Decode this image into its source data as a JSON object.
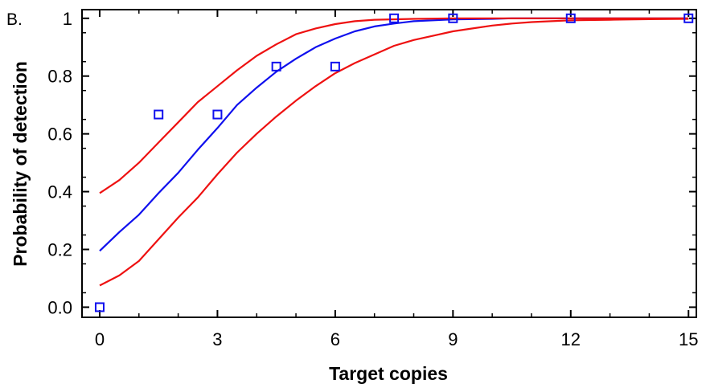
{
  "chart_data": {
    "type": "line",
    "panel_label": "B.",
    "xlabel": "Target copies",
    "ylabel": "Probability of detection",
    "xlim": [
      -0.45,
      15.2
    ],
    "ylim": [
      -0.035,
      1.03
    ],
    "x_ticks": [
      0,
      3,
      6,
      9,
      12,
      15
    ],
    "x_tick_labels": [
      "0",
      "3",
      "6",
      "9",
      "12",
      "15"
    ],
    "y_ticks": [
      0,
      0.2,
      0.4,
      0.6,
      0.8,
      1
    ],
    "y_tick_labels": [
      "0.0",
      "0.2",
      "0.4",
      "0.6",
      "0.8",
      "1"
    ],
    "grid": false,
    "colors": {
      "fit": "#1010ee",
      "bounds": "#ee1111",
      "points": "#1010ee",
      "axis": "#000000"
    },
    "series": [
      {
        "role": "observed-points",
        "marker": "open-square",
        "x": [
          0,
          1.5,
          3,
          4.5,
          6,
          7.5,
          9,
          12,
          15
        ],
        "y": [
          0.0,
          0.667,
          0.667,
          0.833,
          0.833,
          1.0,
          1.0,
          1.0,
          1.0
        ]
      },
      {
        "role": "fitted-curve",
        "x": [
          0,
          0.5,
          1,
          1.5,
          2,
          2.5,
          3,
          3.5,
          4,
          4.5,
          5,
          5.5,
          6,
          6.5,
          7,
          7.5,
          8,
          9,
          10,
          10.5,
          11,
          12,
          13,
          14,
          15
        ],
        "y": [
          0.195,
          0.26,
          0.32,
          0.395,
          0.465,
          0.545,
          0.62,
          0.7,
          0.76,
          0.815,
          0.86,
          0.9,
          0.93,
          0.955,
          0.972,
          0.982,
          0.99,
          0.996,
          0.998,
          1.0,
          1.0,
          1.0,
          1.0,
          1.0,
          1.0
        ]
      },
      {
        "role": "upper-bound",
        "x": [
          0,
          0.5,
          1,
          1.5,
          2,
          2.5,
          3,
          3.5,
          4,
          4.5,
          5,
          5.5,
          6,
          6.5,
          7,
          8,
          9,
          10,
          11,
          12,
          13,
          14,
          15
        ],
        "y": [
          0.395,
          0.44,
          0.5,
          0.57,
          0.64,
          0.71,
          0.765,
          0.82,
          0.87,
          0.91,
          0.945,
          0.965,
          0.98,
          0.99,
          0.995,
          0.998,
          1.0,
          1.0,
          1.0,
          1.0,
          1.0,
          1.0,
          1.0
        ]
      },
      {
        "role": "lower-bound",
        "x": [
          0,
          0.5,
          1,
          1.5,
          2,
          2.5,
          3,
          3.5,
          4,
          4.5,
          5,
          5.5,
          6,
          6.5,
          7,
          7.5,
          8,
          8.5,
          9,
          9.5,
          10,
          10.5,
          11,
          11.5,
          12,
          13,
          14,
          15
        ],
        "y": [
          0.075,
          0.11,
          0.16,
          0.235,
          0.31,
          0.38,
          0.46,
          0.535,
          0.6,
          0.66,
          0.715,
          0.765,
          0.81,
          0.845,
          0.875,
          0.905,
          0.925,
          0.94,
          0.955,
          0.965,
          0.975,
          0.982,
          0.987,
          0.99,
          0.993,
          0.995,
          0.997,
          0.998
        ]
      }
    ]
  }
}
